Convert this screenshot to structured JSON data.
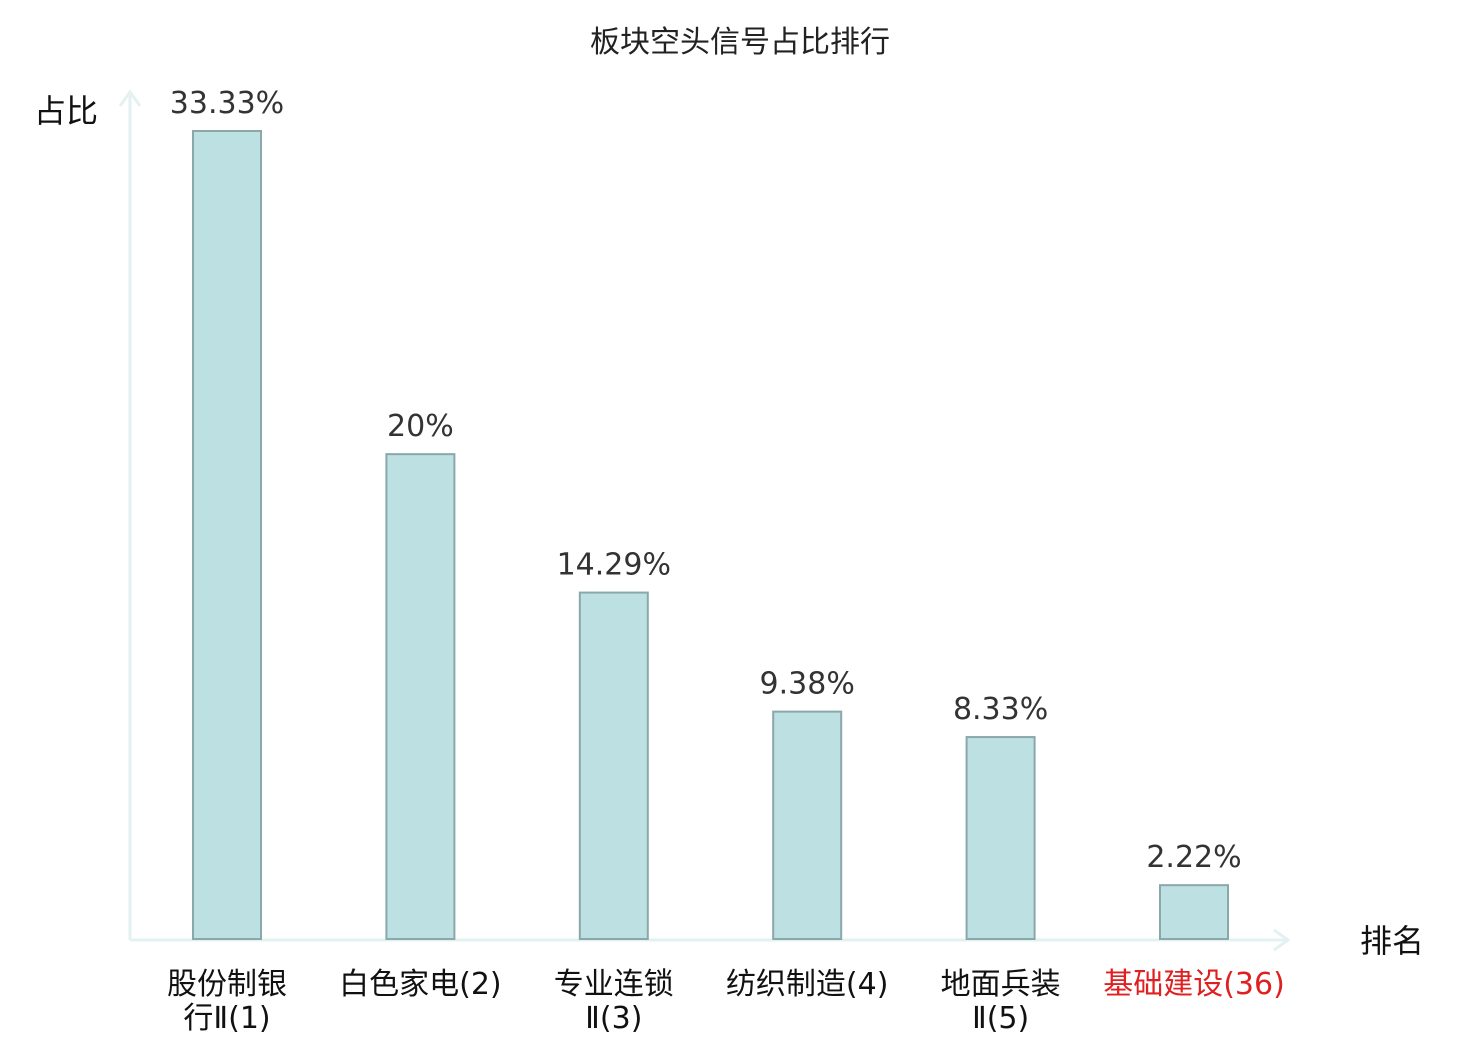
{
  "chart_data": {
    "type": "bar",
    "title": "板块空头信号占比排行",
    "ylabel": "占比",
    "xlabel": "排名",
    "categories": [
      {
        "lines": [
          "股份制银",
          "行Ⅱ(1)"
        ],
        "highlight": false
      },
      {
        "lines": [
          "白色家电(2)"
        ],
        "highlight": false
      },
      {
        "lines": [
          "专业连锁",
          "Ⅱ(3)"
        ],
        "highlight": false
      },
      {
        "lines": [
          "纺织制造(4)"
        ],
        "highlight": false
      },
      {
        "lines": [
          "地面兵装",
          "Ⅱ(5)"
        ],
        "highlight": false
      },
      {
        "lines": [
          "基础建设(36)"
        ],
        "highlight": true
      }
    ],
    "values": [
      33.33,
      20,
      14.29,
      9.38,
      8.33,
      2.22
    ],
    "value_labels": [
      "33.33%",
      "20%",
      "14.29%",
      "9.38%",
      "8.33%",
      "2.22%"
    ],
    "ylim": [
      0,
      33.33
    ],
    "grid": false,
    "colors": {
      "bar_fill": "#bde0e3",
      "bar_stroke": "#8aa7aa",
      "axis": "#e3f2f0",
      "highlight_text": "#e02020"
    }
  }
}
